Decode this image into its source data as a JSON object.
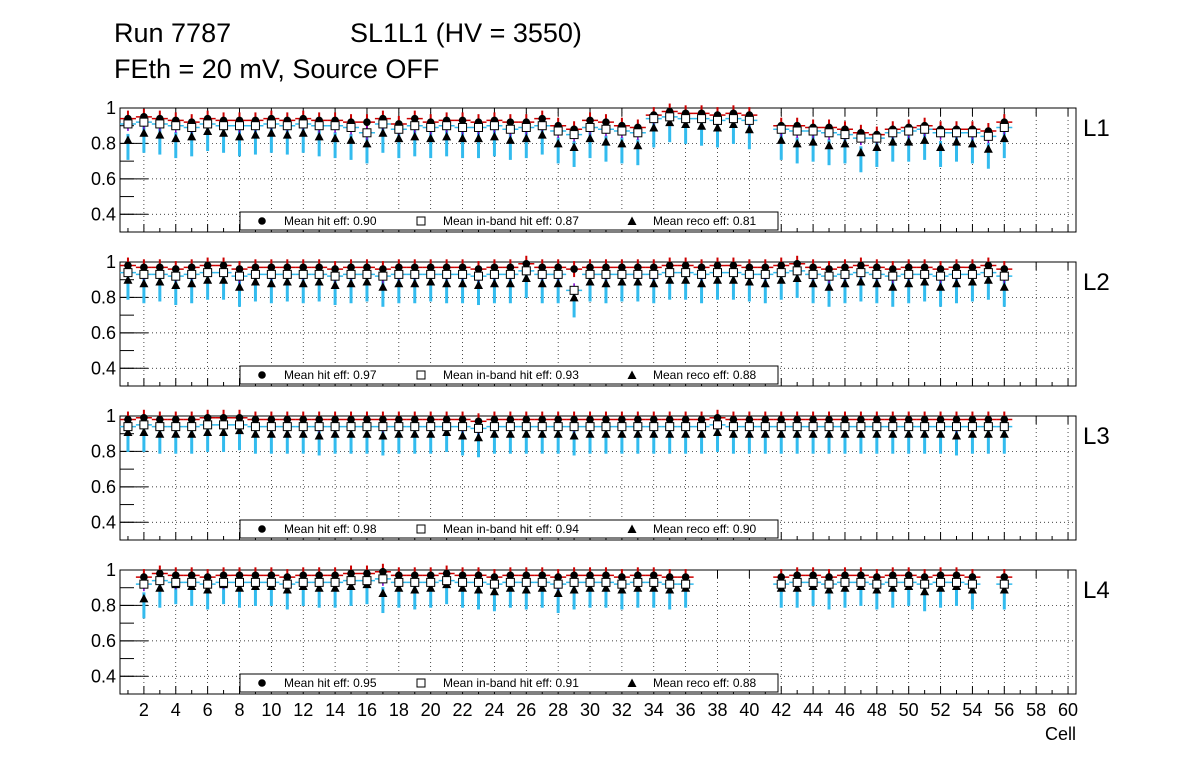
{
  "title": {
    "run": "Run 7787",
    "chamber": "SL1L1 (HV = 3550)",
    "conditions": "FEth = 20 mV, Source OFF"
  },
  "colors": {
    "hit": "#cc0000",
    "inband": "#7a00cc",
    "reco": "#33bbee",
    "grid": "#000000"
  },
  "chart_data": {
    "type": "scatter",
    "xlabel": "Cell",
    "xlim": [
      0.5,
      60.5
    ],
    "ylim": [
      0.3,
      1.0
    ],
    "x_ticks": [
      2,
      4,
      6,
      8,
      10,
      12,
      14,
      16,
      18,
      20,
      22,
      24,
      26,
      28,
      30,
      32,
      34,
      36,
      38,
      40,
      42,
      44,
      46,
      48,
      50,
      52,
      54,
      56,
      58,
      60
    ],
    "y_ticks": [
      0.4,
      0.6,
      0.8,
      1
    ],
    "grid": true,
    "legend_position": "bottom",
    "layers": [
      {
        "name": "L1",
        "legend": {
          "hit": "Mean hit  eff: 0.90",
          "inband": "Mean in-band hit eff: 0.87",
          "reco": "Mean reco eff: 0.81"
        },
        "cells": [
          1,
          2,
          3,
          4,
          5,
          6,
          7,
          8,
          9,
          10,
          11,
          12,
          13,
          14,
          15,
          16,
          17,
          18,
          19,
          20,
          21,
          22,
          23,
          24,
          25,
          26,
          27,
          28,
          29,
          30,
          31,
          32,
          33,
          34,
          35,
          36,
          37,
          38,
          39,
          40,
          42,
          43,
          44,
          45,
          46,
          47,
          48,
          49,
          50,
          51,
          52,
          53,
          54,
          55,
          56
        ],
        "hit": [
          0.94,
          0.95,
          0.94,
          0.93,
          0.92,
          0.94,
          0.93,
          0.93,
          0.93,
          0.94,
          0.93,
          0.94,
          0.93,
          0.93,
          0.92,
          0.92,
          0.94,
          0.91,
          0.94,
          0.92,
          0.93,
          0.93,
          0.92,
          0.93,
          0.92,
          0.92,
          0.94,
          0.9,
          0.88,
          0.93,
          0.92,
          0.9,
          0.89,
          0.96,
          0.98,
          0.97,
          0.97,
          0.96,
          0.97,
          0.96,
          0.9,
          0.9,
          0.89,
          0.89,
          0.88,
          0.86,
          0.85,
          0.88,
          0.89,
          0.9,
          0.88,
          0.88,
          0.88,
          0.87,
          0.92
        ],
        "inband": [
          0.91,
          0.92,
          0.91,
          0.9,
          0.89,
          0.91,
          0.9,
          0.9,
          0.9,
          0.91,
          0.9,
          0.91,
          0.9,
          0.9,
          0.89,
          0.86,
          0.91,
          0.88,
          0.9,
          0.89,
          0.9,
          0.89,
          0.89,
          0.9,
          0.88,
          0.89,
          0.9,
          0.87,
          0.85,
          0.89,
          0.88,
          0.87,
          0.86,
          0.94,
          0.95,
          0.94,
          0.94,
          0.93,
          0.94,
          0.93,
          0.88,
          0.87,
          0.87,
          0.86,
          0.85,
          0.83,
          0.83,
          0.86,
          0.87,
          0.88,
          0.86,
          0.86,
          0.86,
          0.84,
          0.89
        ],
        "reco": [
          0.82,
          0.86,
          0.85,
          0.83,
          0.84,
          0.87,
          0.86,
          0.84,
          0.85,
          0.86,
          0.85,
          0.86,
          0.84,
          0.83,
          0.82,
          0.8,
          0.86,
          0.83,
          0.84,
          0.83,
          0.84,
          0.83,
          0.83,
          0.84,
          0.82,
          0.83,
          0.85,
          0.8,
          0.78,
          0.83,
          0.81,
          0.8,
          0.79,
          0.89,
          0.92,
          0.91,
          0.9,
          0.89,
          0.91,
          0.88,
          0.82,
          0.8,
          0.81,
          0.79,
          0.8,
          0.75,
          0.78,
          0.81,
          0.81,
          0.82,
          0.78,
          0.81,
          0.8,
          0.77,
          0.83
        ]
      },
      {
        "name": "L2",
        "legend": {
          "hit": "Mean hit  eff: 0.97",
          "inband": "Mean in-band hit eff: 0.93",
          "reco": "Mean reco eff: 0.88"
        },
        "cells": [
          1,
          2,
          3,
          4,
          5,
          6,
          7,
          8,
          9,
          10,
          11,
          12,
          13,
          14,
          15,
          16,
          17,
          18,
          19,
          20,
          21,
          22,
          23,
          24,
          25,
          26,
          27,
          28,
          29,
          30,
          31,
          32,
          33,
          34,
          35,
          36,
          37,
          38,
          39,
          40,
          41,
          42,
          43,
          44,
          45,
          46,
          47,
          48,
          49,
          50,
          51,
          52,
          53,
          54,
          55,
          56
        ],
        "hit": [
          0.98,
          0.97,
          0.97,
          0.96,
          0.97,
          0.98,
          0.98,
          0.96,
          0.97,
          0.97,
          0.97,
          0.97,
          0.97,
          0.96,
          0.97,
          0.97,
          0.96,
          0.97,
          0.97,
          0.97,
          0.97,
          0.97,
          0.96,
          0.97,
          0.97,
          0.99,
          0.97,
          0.97,
          0.96,
          0.97,
          0.97,
          0.97,
          0.97,
          0.97,
          0.98,
          0.98,
          0.97,
          0.98,
          0.98,
          0.97,
          0.97,
          0.98,
          0.99,
          0.97,
          0.96,
          0.97,
          0.98,
          0.97,
          0.96,
          0.97,
          0.97,
          0.96,
          0.97,
          0.97,
          0.98,
          0.96
        ],
        "inband": [
          0.94,
          0.93,
          0.93,
          0.92,
          0.93,
          0.94,
          0.94,
          0.92,
          0.93,
          0.93,
          0.93,
          0.93,
          0.93,
          0.92,
          0.93,
          0.93,
          0.92,
          0.93,
          0.93,
          0.93,
          0.93,
          0.93,
          0.92,
          0.93,
          0.93,
          0.95,
          0.93,
          0.93,
          0.84,
          0.93,
          0.93,
          0.93,
          0.93,
          0.93,
          0.94,
          0.94,
          0.93,
          0.94,
          0.94,
          0.93,
          0.93,
          0.94,
          0.95,
          0.93,
          0.92,
          0.93,
          0.94,
          0.93,
          0.92,
          0.93,
          0.93,
          0.92,
          0.93,
          0.93,
          0.94,
          0.92
        ],
        "reco": [
          0.9,
          0.88,
          0.89,
          0.87,
          0.88,
          0.9,
          0.9,
          0.86,
          0.89,
          0.88,
          0.89,
          0.88,
          0.89,
          0.87,
          0.88,
          0.89,
          0.86,
          0.88,
          0.88,
          0.89,
          0.88,
          0.88,
          0.87,
          0.88,
          0.88,
          0.91,
          0.88,
          0.88,
          0.8,
          0.89,
          0.88,
          0.89,
          0.89,
          0.88,
          0.9,
          0.9,
          0.88,
          0.9,
          0.9,
          0.89,
          0.88,
          0.9,
          0.91,
          0.88,
          0.86,
          0.88,
          0.89,
          0.88,
          0.86,
          0.88,
          0.89,
          0.86,
          0.88,
          0.89,
          0.9,
          0.86
        ]
      },
      {
        "name": "L3",
        "legend": {
          "hit": "Mean hit  eff: 0.98",
          "inband": "Mean in-band hit eff: 0.94",
          "reco": "Mean reco eff: 0.90"
        },
        "cells": [
          1,
          2,
          3,
          4,
          5,
          6,
          7,
          8,
          9,
          10,
          11,
          12,
          13,
          14,
          15,
          16,
          17,
          18,
          19,
          20,
          21,
          22,
          23,
          24,
          25,
          26,
          27,
          28,
          29,
          30,
          31,
          32,
          33,
          34,
          35,
          36,
          37,
          38,
          39,
          40,
          41,
          42,
          43,
          44,
          45,
          46,
          47,
          48,
          49,
          50,
          51,
          52,
          53,
          54,
          55,
          56
        ],
        "hit": [
          0.98,
          0.99,
          0.98,
          0.98,
          0.98,
          0.99,
          0.99,
          0.99,
          0.98,
          0.98,
          0.98,
          0.98,
          0.98,
          0.98,
          0.98,
          0.98,
          0.98,
          0.98,
          0.98,
          0.98,
          0.98,
          0.98,
          0.97,
          0.98,
          0.98,
          0.98,
          0.98,
          0.98,
          0.98,
          0.98,
          0.98,
          0.98,
          0.98,
          0.98,
          0.98,
          0.98,
          0.98,
          0.99,
          0.98,
          0.98,
          0.98,
          0.98,
          0.98,
          0.98,
          0.98,
          0.98,
          0.98,
          0.98,
          0.98,
          0.98,
          0.98,
          0.98,
          0.98,
          0.98,
          0.98,
          0.98
        ],
        "inband": [
          0.94,
          0.95,
          0.94,
          0.94,
          0.94,
          0.95,
          0.95,
          0.95,
          0.94,
          0.94,
          0.94,
          0.94,
          0.94,
          0.94,
          0.94,
          0.94,
          0.94,
          0.94,
          0.94,
          0.94,
          0.94,
          0.94,
          0.93,
          0.94,
          0.94,
          0.94,
          0.94,
          0.94,
          0.94,
          0.94,
          0.94,
          0.94,
          0.94,
          0.94,
          0.94,
          0.94,
          0.94,
          0.95,
          0.94,
          0.94,
          0.94,
          0.94,
          0.94,
          0.94,
          0.94,
          0.94,
          0.94,
          0.94,
          0.94,
          0.94,
          0.94,
          0.94,
          0.94,
          0.94,
          0.94,
          0.94
        ],
        "reco": [
          0.91,
          0.91,
          0.9,
          0.9,
          0.9,
          0.91,
          0.91,
          0.92,
          0.9,
          0.9,
          0.9,
          0.9,
          0.89,
          0.9,
          0.9,
          0.9,
          0.89,
          0.9,
          0.9,
          0.9,
          0.91,
          0.89,
          0.88,
          0.9,
          0.9,
          0.9,
          0.9,
          0.9,
          0.89,
          0.9,
          0.9,
          0.9,
          0.9,
          0.9,
          0.9,
          0.9,
          0.9,
          0.91,
          0.9,
          0.9,
          0.9,
          0.9,
          0.9,
          0.9,
          0.9,
          0.9,
          0.9,
          0.9,
          0.9,
          0.9,
          0.9,
          0.9,
          0.89,
          0.9,
          0.9,
          0.9
        ]
      },
      {
        "name": "L4",
        "legend": {
          "hit": "Mean hit  eff: 0.95",
          "inband": "Mean in-band hit eff: 0.91",
          "reco": "Mean reco eff: 0.88"
        },
        "cells": [
          2,
          3,
          4,
          5,
          6,
          7,
          8,
          9,
          10,
          11,
          12,
          13,
          14,
          15,
          16,
          17,
          18,
          19,
          20,
          21,
          22,
          23,
          24,
          25,
          26,
          27,
          28,
          29,
          30,
          31,
          32,
          33,
          34,
          35,
          36,
          42,
          43,
          44,
          45,
          46,
          47,
          48,
          49,
          50,
          51,
          52,
          53,
          54,
          56
        ],
        "hit": [
          0.96,
          0.98,
          0.97,
          0.97,
          0.96,
          0.97,
          0.97,
          0.97,
          0.97,
          0.96,
          0.97,
          0.97,
          0.97,
          0.98,
          0.98,
          0.99,
          0.97,
          0.97,
          0.97,
          0.98,
          0.97,
          0.97,
          0.96,
          0.97,
          0.97,
          0.97,
          0.96,
          0.97,
          0.97,
          0.97,
          0.96,
          0.97,
          0.97,
          0.96,
          0.96,
          0.96,
          0.97,
          0.97,
          0.96,
          0.97,
          0.97,
          0.96,
          0.97,
          0.97,
          0.96,
          0.97,
          0.97,
          0.96,
          0.96
        ],
        "inband": [
          0.92,
          0.94,
          0.93,
          0.93,
          0.92,
          0.93,
          0.93,
          0.93,
          0.93,
          0.92,
          0.93,
          0.93,
          0.93,
          0.94,
          0.94,
          0.95,
          0.93,
          0.93,
          0.93,
          0.94,
          0.93,
          0.93,
          0.92,
          0.93,
          0.93,
          0.93,
          0.92,
          0.93,
          0.93,
          0.93,
          0.92,
          0.93,
          0.93,
          0.92,
          0.92,
          0.92,
          0.93,
          0.93,
          0.92,
          0.93,
          0.93,
          0.92,
          0.93,
          0.93,
          0.92,
          0.93,
          0.93,
          0.92,
          0.92
        ],
        "reco": [
          0.84,
          0.9,
          0.92,
          0.91,
          0.89,
          0.92,
          0.9,
          0.91,
          0.91,
          0.89,
          0.91,
          0.9,
          0.9,
          0.91,
          0.92,
          0.87,
          0.9,
          0.89,
          0.9,
          0.92,
          0.9,
          0.89,
          0.88,
          0.9,
          0.89,
          0.9,
          0.87,
          0.89,
          0.9,
          0.9,
          0.89,
          0.9,
          0.9,
          0.89,
          0.9,
          0.9,
          0.9,
          0.91,
          0.89,
          0.9,
          0.91,
          0.89,
          0.9,
          0.91,
          0.88,
          0.9,
          0.91,
          0.89,
          0.89
        ]
      }
    ]
  }
}
